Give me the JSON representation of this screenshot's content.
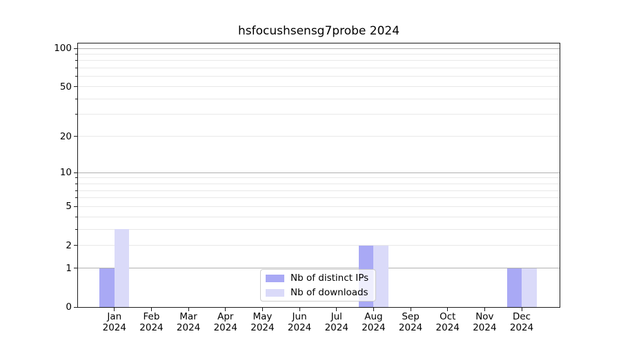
{
  "chart_data": {
    "type": "bar",
    "title": "hsfocushsensg7probe 2024",
    "categories": [
      "Jan",
      "Feb",
      "Mar",
      "Apr",
      "May",
      "Jun",
      "Jul",
      "Aug",
      "Sep",
      "Oct",
      "Nov",
      "Dec"
    ],
    "category_year": "2024",
    "series": [
      {
        "name": "Nb of distinct IPs",
        "color": "#a9a9f5",
        "values": [
          1,
          0,
          0,
          0,
          0,
          0,
          0,
          2,
          0,
          0,
          0,
          1
        ]
      },
      {
        "name": "Nb of downloads",
        "color": "#dadaf9",
        "values": [
          3,
          0,
          0,
          0,
          0,
          0,
          0,
          2,
          0,
          0,
          0,
          1
        ]
      }
    ],
    "xlabel": "",
    "ylabel": "",
    "yscale": "log1p",
    "ylim": [
      0,
      110
    ],
    "yticks_labeled": [
      0,
      1,
      2,
      5,
      10,
      20,
      50,
      100
    ],
    "gridlines_dark": [
      1,
      10,
      100
    ],
    "gridlines_light": [
      2,
      3,
      4,
      5,
      6,
      7,
      8,
      9,
      20,
      30,
      40,
      50,
      60,
      70,
      80,
      90
    ],
    "grid": true,
    "legend_position": "lower center",
    "axis_color": "#1a1a1a",
    "grid_major_color": "#b0b0b0",
    "grid_minor_color": "#e8e8e8"
  }
}
